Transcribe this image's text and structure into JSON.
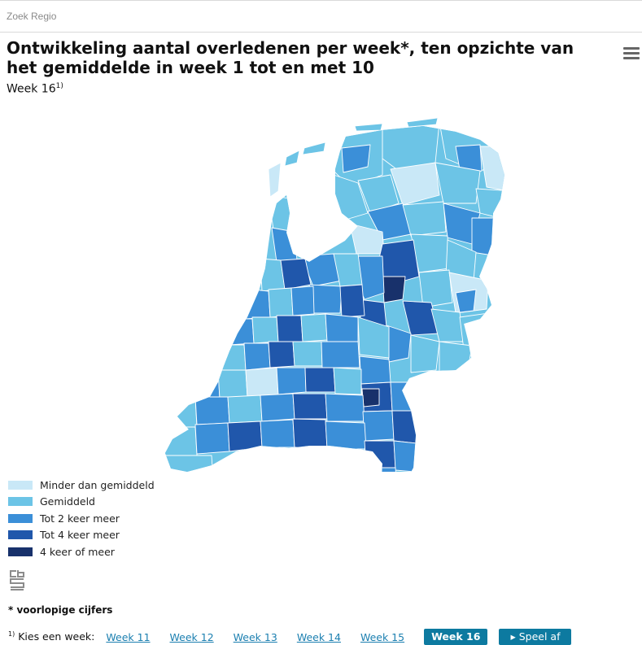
{
  "search": {
    "label": "Zoek Regio"
  },
  "title": "Ontwikkeling aantal overledenen per week*, ten opzichte van het gemiddelde in week 1 tot en met 10",
  "subtitle": {
    "text": "Week 16",
    "note": "1)"
  },
  "menu_icon": "hamburger-menu-icon",
  "legend": [
    {
      "label": "Minder dan gemiddeld",
      "color": "#c9e8f7"
    },
    {
      "label": "Gemiddeld",
      "color": "#6cc4e6"
    },
    {
      "label": "Tot 2 keer meer",
      "color": "#3b8fd8"
    },
    {
      "label": "Tot 4 keer meer",
      "color": "#2057ab"
    },
    {
      "label": "4 keer of meer",
      "color": "#18316b"
    }
  ],
  "logo": "cbs",
  "footnote": "* voorlopige cijfers",
  "week_selector": {
    "note": "1)",
    "label": "Kies een week:",
    "links": [
      "Week 11",
      "Week 12",
      "Week 13",
      "Week 14",
      "Week 15"
    ],
    "active": "Week 16",
    "play": "Speel af"
  }
}
